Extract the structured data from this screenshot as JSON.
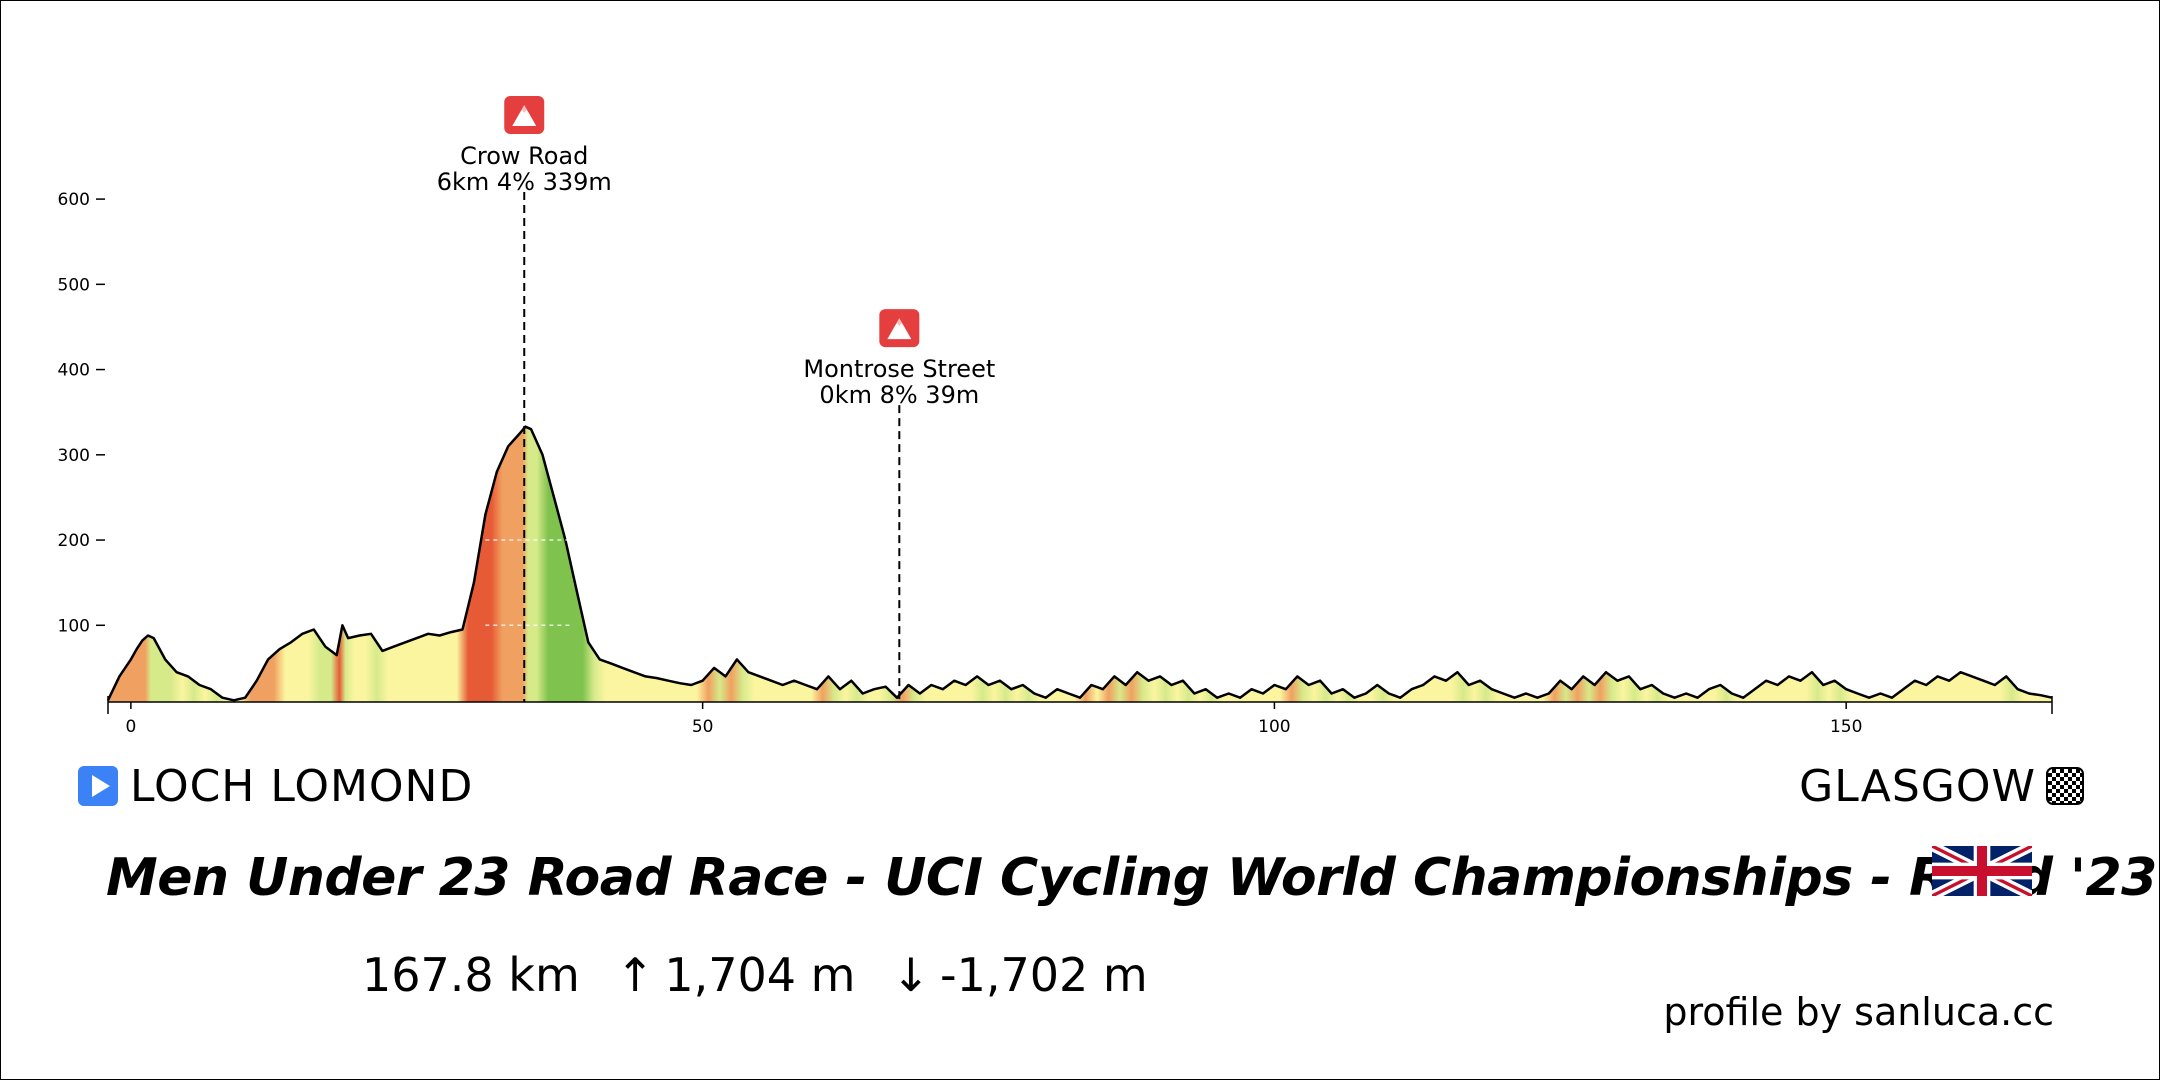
{
  "race": {
    "title": "Men Under 23 Road Race - UCI Cycling World Championships - Road '23",
    "start": "LOCH LOMOND",
    "finish": "GLASGOW",
    "distance": "167.8 km",
    "ascent": "1,704 m",
    "descent": "-1,702 m",
    "credit": "profile by sanluca.cc",
    "flag": "united-kingdom-flag",
    "ascent_icon": "arrow-up-icon",
    "descent_icon": "arrow-down-icon",
    "start_icon": "play-icon",
    "finish_icon": "checkered-flag-icon"
  },
  "chart_data": {
    "type": "area",
    "x_unit": "km",
    "y_unit": "m",
    "xlim": [
      -2,
      168
    ],
    "ylim": [
      10,
      640
    ],
    "x_ticks": [
      0,
      50,
      100,
      150
    ],
    "y_ticks": [
      100,
      200,
      300,
      400,
      500,
      600
    ],
    "grid": false,
    "gradient_colors": {
      "flat": "#fbf5a0",
      "mild": "#d6ea8a",
      "descent": "#7fc24e",
      "steep": "#f0a060",
      "very_steep": "#e65a35"
    },
    "profile": [
      [
        -2,
        12
      ],
      [
        -1,
        40
      ],
      [
        0,
        60
      ],
      [
        0.5,
        72
      ],
      [
        1,
        82
      ],
      [
        1.5,
        88
      ],
      [
        2,
        85
      ],
      [
        3,
        60
      ],
      [
        4,
        45
      ],
      [
        5,
        40
      ],
      [
        6,
        30
      ],
      [
        7,
        25
      ],
      [
        8,
        15
      ],
      [
        9,
        12
      ],
      [
        10,
        15
      ],
      [
        11,
        35
      ],
      [
        12,
        60
      ],
      [
        13,
        72
      ],
      [
        14,
        80
      ],
      [
        15,
        90
      ],
      [
        16,
        95
      ],
      [
        17,
        75
      ],
      [
        18,
        65
      ],
      [
        18.5,
        100
      ],
      [
        19,
        85
      ],
      [
        20,
        88
      ],
      [
        21,
        90
      ],
      [
        22,
        70
      ],
      [
        23,
        75
      ],
      [
        24,
        80
      ],
      [
        25,
        85
      ],
      [
        26,
        90
      ],
      [
        27,
        88
      ],
      [
        28,
        92
      ],
      [
        29,
        95
      ],
      [
        30,
        150
      ],
      [
        31,
        230
      ],
      [
        32,
        280
      ],
      [
        33,
        310
      ],
      [
        34,
        325
      ],
      [
        34.5,
        333
      ],
      [
        35,
        330
      ],
      [
        36,
        300
      ],
      [
        37,
        250
      ],
      [
        38,
        200
      ],
      [
        39,
        140
      ],
      [
        40,
        80
      ],
      [
        41,
        60
      ],
      [
        42,
        55
      ],
      [
        43,
        50
      ],
      [
        44,
        45
      ],
      [
        45,
        40
      ],
      [
        46,
        38
      ],
      [
        47,
        35
      ],
      [
        48,
        32
      ],
      [
        49,
        30
      ],
      [
        50,
        35
      ],
      [
        51,
        50
      ],
      [
        52,
        40
      ],
      [
        53,
        60
      ],
      [
        54,
        45
      ],
      [
        55,
        40
      ],
      [
        56,
        35
      ],
      [
        57,
        30
      ],
      [
        58,
        35
      ],
      [
        59,
        30
      ],
      [
        60,
        25
      ],
      [
        61,
        40
      ],
      [
        62,
        25
      ],
      [
        63,
        35
      ],
      [
        64,
        20
      ],
      [
        65,
        25
      ],
      [
        66,
        28
      ],
      [
        67,
        15
      ],
      [
        68,
        30
      ],
      [
        69,
        20
      ],
      [
        70,
        30
      ],
      [
        71,
        25
      ],
      [
        72,
        35
      ],
      [
        73,
        30
      ],
      [
        74,
        40
      ],
      [
        75,
        30
      ],
      [
        76,
        35
      ],
      [
        77,
        25
      ],
      [
        78,
        30
      ],
      [
        79,
        20
      ],
      [
        80,
        15
      ],
      [
        81,
        25
      ],
      [
        82,
        20
      ],
      [
        83,
        15
      ],
      [
        84,
        30
      ],
      [
        85,
        25
      ],
      [
        86,
        40
      ],
      [
        87,
        30
      ],
      [
        88,
        45
      ],
      [
        89,
        35
      ],
      [
        90,
        40
      ],
      [
        91,
        30
      ],
      [
        92,
        35
      ],
      [
        93,
        20
      ],
      [
        94,
        25
      ],
      [
        95,
        15
      ],
      [
        96,
        20
      ],
      [
        97,
        15
      ],
      [
        98,
        25
      ],
      [
        99,
        20
      ],
      [
        100,
        30
      ],
      [
        101,
        25
      ],
      [
        102,
        40
      ],
      [
        103,
        30
      ],
      [
        104,
        35
      ],
      [
        105,
        20
      ],
      [
        106,
        25
      ],
      [
        107,
        15
      ],
      [
        108,
        20
      ],
      [
        109,
        30
      ],
      [
        110,
        20
      ],
      [
        111,
        15
      ],
      [
        112,
        25
      ],
      [
        113,
        30
      ],
      [
        114,
        40
      ],
      [
        115,
        35
      ],
      [
        116,
        45
      ],
      [
        117,
        30
      ],
      [
        118,
        35
      ],
      [
        119,
        25
      ],
      [
        120,
        20
      ],
      [
        121,
        15
      ],
      [
        122,
        20
      ],
      [
        123,
        15
      ],
      [
        124,
        20
      ],
      [
        125,
        35
      ],
      [
        126,
        25
      ],
      [
        127,
        40
      ],
      [
        128,
        30
      ],
      [
        129,
        45
      ],
      [
        130,
        35
      ],
      [
        131,
        40
      ],
      [
        132,
        25
      ],
      [
        133,
        30
      ],
      [
        134,
        20
      ],
      [
        135,
        15
      ],
      [
        136,
        20
      ],
      [
        137,
        15
      ],
      [
        138,
        25
      ],
      [
        139,
        30
      ],
      [
        140,
        20
      ],
      [
        141,
        15
      ],
      [
        142,
        25
      ],
      [
        143,
        35
      ],
      [
        144,
        30
      ],
      [
        145,
        40
      ],
      [
        146,
        35
      ],
      [
        147,
        45
      ],
      [
        148,
        30
      ],
      [
        149,
        35
      ],
      [
        150,
        25
      ],
      [
        151,
        20
      ],
      [
        152,
        15
      ],
      [
        153,
        20
      ],
      [
        154,
        15
      ],
      [
        155,
        25
      ],
      [
        156,
        35
      ],
      [
        157,
        30
      ],
      [
        158,
        40
      ],
      [
        159,
        35
      ],
      [
        160,
        45
      ],
      [
        161,
        40
      ],
      [
        162,
        35
      ],
      [
        163,
        30
      ],
      [
        164,
        40
      ],
      [
        165,
        25
      ],
      [
        166,
        20
      ],
      [
        167,
        18
      ],
      [
        168,
        15
      ]
    ],
    "annotations": [
      {
        "name": "Crow Road",
        "detail": "6km 4% 339m",
        "km": 34.4,
        "elevation": 333,
        "label_level": 620
      },
      {
        "name": "Montrose Street",
        "detail": "0km 8% 39m",
        "km": 67.2,
        "elevation": 20,
        "label_level": 370
      }
    ]
  }
}
